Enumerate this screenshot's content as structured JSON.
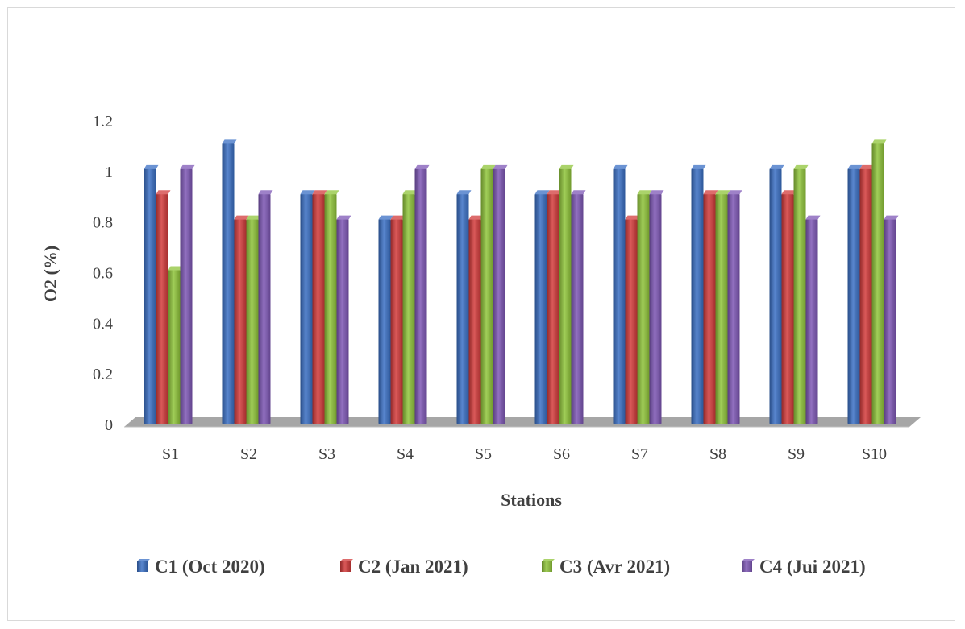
{
  "chart_data": {
    "type": "bar",
    "title": "",
    "xlabel": "Stations",
    "ylabel": "O2 (%)",
    "categories": [
      "S1",
      "S2",
      "S3",
      "S4",
      "S5",
      "S6",
      "S7",
      "S8",
      "S9",
      "S10"
    ],
    "yticks": [
      "0",
      "0.2",
      "0.4",
      "0.6",
      "0.8",
      "1",
      "1.2"
    ],
    "ylim": [
      0,
      1.2
    ],
    "grid": false,
    "legend_position": "bottom",
    "series": [
      {
        "name": "C1 (Oct 2020)",
        "color": "#3a6fc4",
        "values": [
          1.0,
          1.1,
          0.9,
          0.8,
          0.9,
          0.9,
          1.0,
          1.0,
          1.0,
          1.0
        ]
      },
      {
        "name": "C2 (Jan 2021)",
        "color": "#d23b3b",
        "values": [
          0.9,
          0.8,
          0.9,
          0.8,
          0.8,
          0.9,
          0.8,
          0.9,
          0.9,
          1.0
        ]
      },
      {
        "name": "C3 (Avr 2021)",
        "color": "#8fc43a",
        "values": [
          0.6,
          0.8,
          0.9,
          0.9,
          1.0,
          1.0,
          0.9,
          0.9,
          1.0,
          1.1
        ]
      },
      {
        "name": "C4 (Jui 2021)",
        "color": "#7e57b5",
        "values": [
          1.0,
          0.9,
          0.8,
          1.0,
          1.0,
          0.9,
          0.9,
          0.9,
          0.8,
          0.8
        ]
      }
    ]
  }
}
